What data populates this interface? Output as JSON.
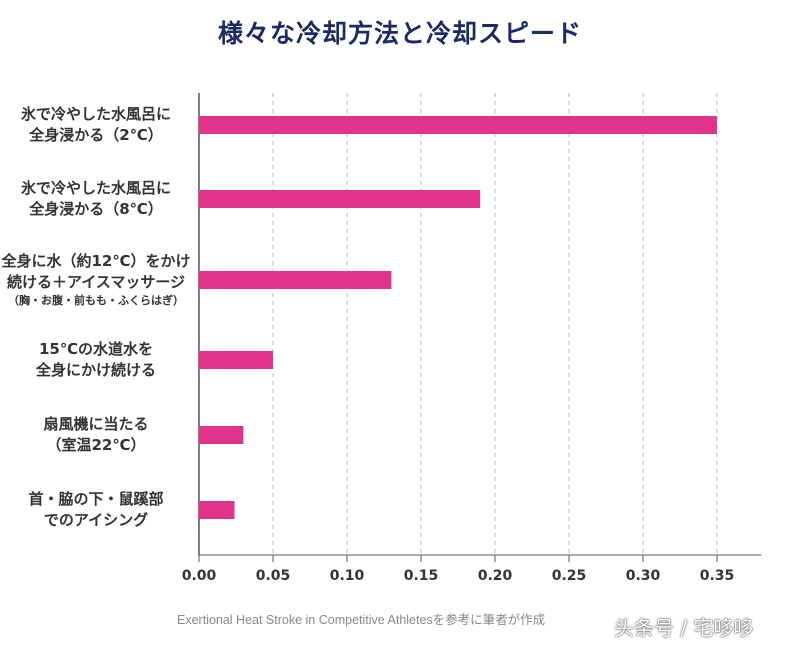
{
  "chart_data": {
    "type": "bar",
    "orientation": "horizontal",
    "title": "様々な冷却方法と冷却スピード",
    "categories": [
      [
        "氷で冷やした水風呂に",
        "全身浸かる（2℃）"
      ],
      [
        "氷で冷やした水風呂に",
        "全身浸かる（8℃）"
      ],
      [
        "全身に水（約12℃）をかけ",
        "続ける＋アイスマッサージ",
        "（胸・お腹・前もも・ふくらはぎ）"
      ],
      [
        "15℃の水道水を",
        "全身にかけ続ける"
      ],
      [
        "扇風機に当たる",
        "（室温22℃）"
      ],
      [
        "首・脇の下・鼠蹊部",
        "でのアイシング"
      ]
    ],
    "values": [
      0.35,
      0.19,
      0.13,
      0.05,
      0.03,
      0.024
    ],
    "xlim": [
      0,
      0.38
    ],
    "xticks": [
      "0.00",
      "0.05",
      "0.10",
      "0.15",
      "0.20",
      "0.25",
      "0.30",
      "0.35"
    ],
    "xlabel": "",
    "ylabel": "",
    "grid": "vertical dashed",
    "bar_color": "#e0338a",
    "title_color": "#1b2a63"
  },
  "source": "Exertional Heat Stroke in Competitive Athletesを参考に筆者が作成",
  "watermark": "头条号 / 宅哆哆"
}
